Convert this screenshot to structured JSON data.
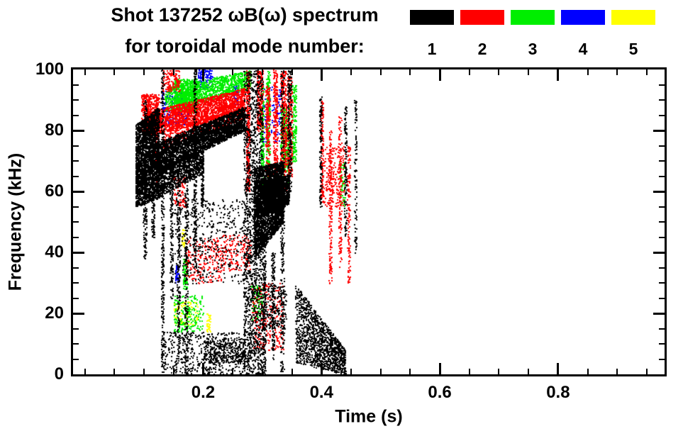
{
  "title": {
    "line1": "Shot 137252 ωB(ω) spectrum",
    "line2": "for toroidal mode number:"
  },
  "legend": {
    "entries": [
      {
        "label": "1",
        "color": "#000000"
      },
      {
        "label": "2",
        "color": "#ff0000"
      },
      {
        "label": "3",
        "color": "#00ee00"
      },
      {
        "label": "4",
        "color": "#0000ff"
      },
      {
        "label": "5",
        "color": "#ffff00"
      }
    ]
  },
  "axes": {
    "x": {
      "label": "Time (s)",
      "major_ticks": [
        {
          "value": 0.2,
          "label": "0.2"
        },
        {
          "value": 0.4,
          "label": "0.4"
        },
        {
          "value": 0.6,
          "label": "0.6"
        },
        {
          "value": 0.8,
          "label": "0.8"
        }
      ],
      "minor_step": 0.05
    },
    "y": {
      "label": "Frequency (kHz)",
      "major_ticks": [
        {
          "value": 0,
          "label": "0"
        },
        {
          "value": 20,
          "label": "20"
        },
        {
          "value": 40,
          "label": "40"
        },
        {
          "value": 60,
          "label": "60"
        },
        {
          "value": 80,
          "label": "80"
        },
        {
          "value": 100,
          "label": "100"
        }
      ],
      "minor_step": 5
    }
  },
  "chart_data": {
    "type": "scatter",
    "title": "Shot 137252 ωB(ω) spectrum for toroidal mode number: 1 2 3 4 5",
    "xlabel": "Time (s)",
    "ylabel": "Frequency (kHz)",
    "xlim": [
      -0.02,
      0.98
    ],
    "ylim": [
      0,
      100
    ],
    "legend_position": "top-right",
    "grid": false,
    "series": [
      {
        "name": "1",
        "color": "#000000",
        "patches": [
          [
            0.085,
            0.125,
            55,
            58,
            82,
            88,
            2500
          ],
          [
            0.12,
            0.27,
            66,
            80,
            76,
            88,
            3000
          ],
          [
            0.12,
            0.2,
            58,
            66,
            68,
            74,
            1000
          ],
          [
            0.098,
            0.104,
            38,
            38,
            90,
            90,
            250
          ],
          [
            0.112,
            0.117,
            45,
            45,
            85,
            85,
            200
          ],
          [
            0.128,
            0.133,
            0,
            0,
            100,
            100,
            350
          ],
          [
            0.143,
            0.148,
            25,
            25,
            75,
            75,
            200
          ],
          [
            0.155,
            0.16,
            5,
            5,
            70,
            70,
            220
          ],
          [
            0.168,
            0.173,
            0,
            0,
            65,
            65,
            220
          ],
          [
            0.183,
            0.188,
            35,
            35,
            100,
            100,
            250
          ],
          [
            0.196,
            0.2,
            55,
            55,
            80,
            80,
            120
          ],
          [
            0.15,
            0.27,
            30,
            30,
            58,
            58,
            450
          ],
          [
            0.268,
            0.3,
            0,
            0,
            100,
            100,
            1600
          ],
          [
            0.285,
            0.335,
            38,
            50,
            68,
            70,
            3200
          ],
          [
            0.3,
            0.345,
            52,
            56,
            62,
            66,
            1400
          ],
          [
            0.3,
            0.305,
            0,
            0,
            45,
            45,
            200
          ],
          [
            0.315,
            0.32,
            5,
            5,
            40,
            40,
            150
          ],
          [
            0.33,
            0.336,
            0,
            0,
            100,
            100,
            300
          ],
          [
            0.342,
            0.348,
            60,
            60,
            100,
            100,
            220
          ],
          [
            0.13,
            0.28,
            0,
            0,
            14,
            14,
            550
          ],
          [
            0.2,
            0.27,
            4,
            4,
            12,
            12,
            300
          ],
          [
            0.355,
            0.44,
            4,
            0,
            30,
            8,
            1300
          ],
          [
            0.396,
            0.4,
            55,
            55,
            92,
            92,
            120
          ],
          [
            0.438,
            0.442,
            45,
            45,
            88,
            88,
            130
          ],
          [
            0.455,
            0.459,
            40,
            40,
            90,
            90,
            100
          ],
          [
            0.3,
            0.34,
            15,
            15,
            30,
            30,
            180
          ]
        ]
      },
      {
        "name": "2",
        "color": "#ff0000",
        "patches": [
          [
            0.1,
            0.27,
            78,
            86,
            86,
            94,
            2200
          ],
          [
            0.095,
            0.125,
            80,
            80,
            92,
            92,
            500
          ],
          [
            0.118,
            0.123,
            62,
            62,
            88,
            88,
            150
          ],
          [
            0.13,
            0.27,
            74,
            84,
            80,
            88,
            500
          ],
          [
            0.272,
            0.278,
            60,
            60,
            100,
            100,
            300
          ],
          [
            0.29,
            0.3,
            80,
            80,
            100,
            100,
            250
          ],
          [
            0.305,
            0.312,
            55,
            55,
            95,
            95,
            250
          ],
          [
            0.318,
            0.325,
            60,
            60,
            100,
            100,
            280
          ],
          [
            0.33,
            0.34,
            60,
            60,
            100,
            100,
            400
          ],
          [
            0.342,
            0.35,
            65,
            65,
            98,
            98,
            250
          ],
          [
            0.17,
            0.23,
            30,
            30,
            45,
            45,
            220
          ],
          [
            0.23,
            0.28,
            34,
            34,
            46,
            46,
            180
          ],
          [
            0.28,
            0.335,
            8,
            8,
            30,
            30,
            280
          ],
          [
            0.398,
            0.402,
            58,
            58,
            90,
            90,
            130
          ],
          [
            0.412,
            0.417,
            30,
            30,
            80,
            80,
            150
          ],
          [
            0.428,
            0.433,
            35,
            35,
            85,
            85,
            140
          ],
          [
            0.443,
            0.448,
            30,
            30,
            75,
            75,
            130
          ],
          [
            0.4,
            0.44,
            55,
            55,
            75,
            75,
            220
          ],
          [
            0.15,
            0.17,
            55,
            55,
            65,
            65,
            80
          ],
          [
            0.13,
            0.16,
            93,
            93,
            100,
            100,
            140
          ]
        ]
      },
      {
        "name": "3",
        "color": "#00ee00",
        "patches": [
          [
            0.135,
            0.28,
            86,
            94,
            94,
            100,
            1200
          ],
          [
            0.15,
            0.19,
            86,
            86,
            97,
            97,
            600
          ],
          [
            0.296,
            0.302,
            58,
            58,
            95,
            95,
            200
          ],
          [
            0.306,
            0.312,
            62,
            62,
            100,
            100,
            200
          ],
          [
            0.33,
            0.345,
            62,
            62,
            88,
            88,
            420
          ],
          [
            0.35,
            0.357,
            70,
            70,
            95,
            95,
            150
          ],
          [
            0.15,
            0.2,
            14,
            14,
            26,
            26,
            200
          ],
          [
            0.165,
            0.172,
            28,
            28,
            38,
            38,
            80
          ],
          [
            0.28,
            0.3,
            18,
            18,
            30,
            30,
            100
          ],
          [
            0.43,
            0.44,
            55,
            55,
            70,
            70,
            60
          ]
        ]
      },
      {
        "name": "4",
        "color": "#0000ff",
        "patches": [
          [
            0.13,
            0.175,
            82,
            82,
            93,
            93,
            230
          ],
          [
            0.19,
            0.215,
            94,
            94,
            100,
            100,
            140
          ],
          [
            0.3,
            0.33,
            75,
            75,
            95,
            95,
            110
          ],
          [
            0.152,
            0.158,
            30,
            30,
            36,
            36,
            40
          ],
          [
            0.25,
            0.26,
            88,
            88,
            95,
            95,
            60
          ]
        ]
      },
      {
        "name": "5",
        "color": "#ffff00",
        "patches": [
          [
            0.15,
            0.19,
            16,
            16,
            24,
            24,
            110
          ],
          [
            0.3,
            0.315,
            54,
            54,
            60,
            60,
            50
          ],
          [
            0.163,
            0.168,
            42,
            42,
            48,
            48,
            30
          ],
          [
            0.205,
            0.212,
            14,
            14,
            20,
            20,
            40
          ]
        ]
      }
    ]
  }
}
